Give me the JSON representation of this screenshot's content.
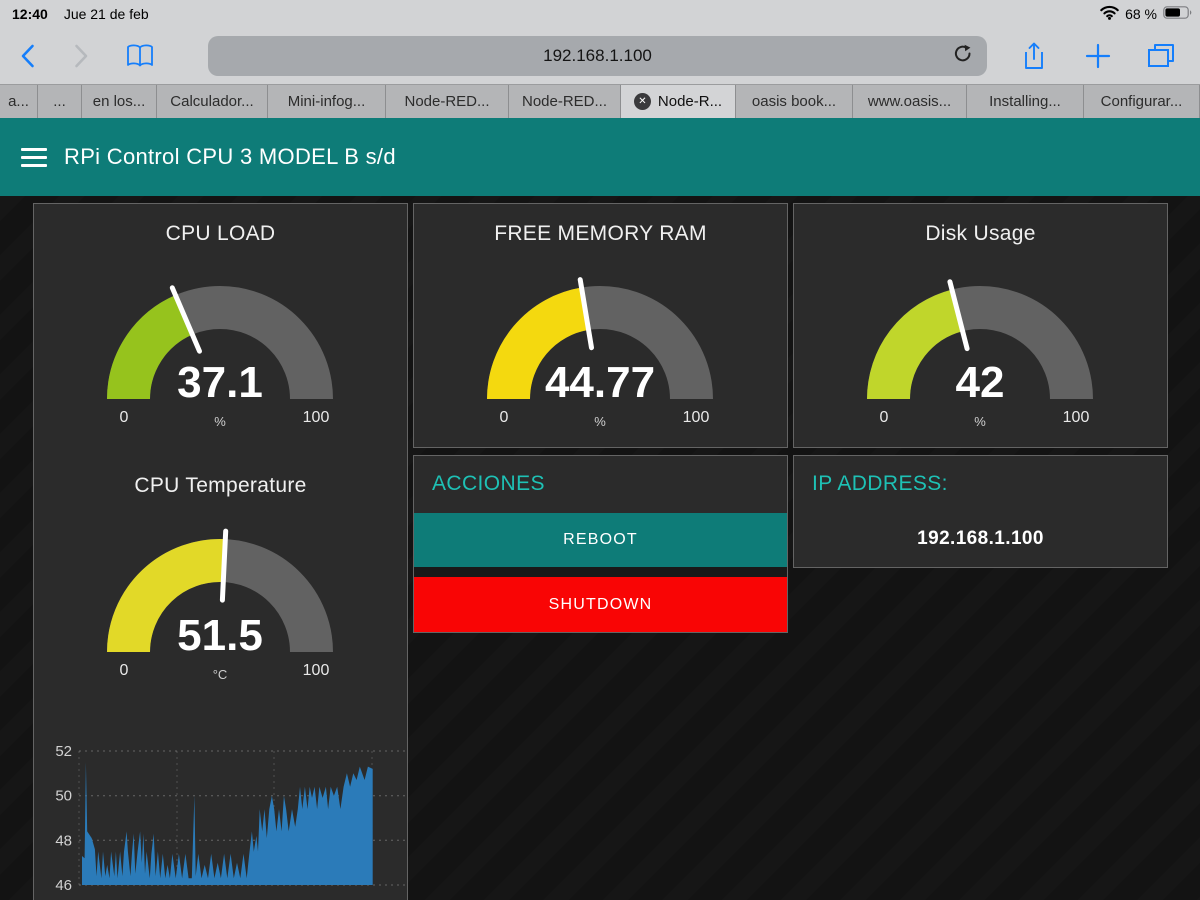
{
  "status_bar": {
    "time": "12:40",
    "date": "Jue 21 de feb",
    "battery": "68 %",
    "battery_level": 0.68
  },
  "toolbar": {
    "url": "192.168.1.100",
    "icons": {
      "back": "chevron-left",
      "forward": "chevron-right",
      "bookmarks": "open-book",
      "reload": "reload-arrow",
      "share": "share-up-arrow",
      "new_tab": "plus",
      "tabs": "tab-overview"
    }
  },
  "tabs": [
    {
      "label": "a...",
      "width": 38,
      "active": false
    },
    {
      "label": "...",
      "width": 44,
      "active": false
    },
    {
      "label": "en los...",
      "width": 75,
      "active": false
    },
    {
      "label": "Calculador...",
      "width": 111,
      "active": false
    },
    {
      "label": "Mini-infog...",
      "width": 118,
      "active": false
    },
    {
      "label": "Node-RED...",
      "width": 123,
      "active": false
    },
    {
      "label": "Node-RED...",
      "width": 112,
      "active": false
    },
    {
      "label": "Node-R...",
      "width": 115,
      "active": true,
      "closable": true
    },
    {
      "label": "oasis book...",
      "width": 117,
      "active": false
    },
    {
      "label": "www.oasis...",
      "width": 114,
      "active": false
    },
    {
      "label": "Installing...",
      "width": 117,
      "active": false
    },
    {
      "label": "Configurar...",
      "width": 116,
      "active": false
    }
  ],
  "header": {
    "title": "RPi Control CPU 3 MODEL B s/d"
  },
  "gauges": {
    "cpu_load": {
      "title": "CPU LOAD",
      "value": "37.1",
      "num": 37.1,
      "min": 0,
      "max": 100,
      "unit": "%",
      "color": "#96c31d"
    },
    "free_memory": {
      "title": "FREE MEMORY RAM",
      "value": "44.77",
      "num": 44.77,
      "min": 0,
      "max": 100,
      "unit": "%",
      "color": "#f4d90f"
    },
    "disk_usage": {
      "title": "Disk Usage",
      "value": "42",
      "num": 42,
      "min": 0,
      "max": 100,
      "unit": "%",
      "color": "#c0d62b"
    },
    "cpu_temp": {
      "title": "CPU Temperature",
      "value": "51.5",
      "num": 51.5,
      "min": 0,
      "max": 100,
      "unit": "°C",
      "color": "#e2d928"
    }
  },
  "actions": {
    "title": "ACCIONES",
    "reboot_label": "REBOOT",
    "shutdown_label": "SHUTDOWN"
  },
  "ip_panel": {
    "title": "IP ADDRESS:",
    "value": "192.168.1.100"
  },
  "colors": {
    "header_teal": "#0e7c78",
    "accent_teal": "#1ec1b5",
    "reboot_teal": "#0e7c78",
    "shutdown_red": "#f90505",
    "gauge_track_gray": "#626262",
    "chart_blue": "#2b7bb9",
    "panel_bg": "#2b2b2b",
    "page_bg": "#131313"
  },
  "chart_data": {
    "type": "area",
    "title": "",
    "xlabel": "",
    "ylabel": "",
    "yticks": [
      46,
      48,
      50,
      52
    ],
    "ylim": [
      46,
      52.6
    ],
    "grid": true,
    "legend": "none",
    "color": "#2b7bb9",
    "series": [
      {
        "name": "CPU Temperature (°C)",
        "points": [
          [
            0.0,
            47.3
          ],
          [
            0.008,
            47.2
          ],
          [
            0.012,
            51.5
          ],
          [
            0.016,
            48.4
          ],
          [
            0.03,
            48.1
          ],
          [
            0.04,
            47.6
          ],
          [
            0.045,
            46.4
          ],
          [
            0.05,
            47.5
          ],
          [
            0.06,
            46.3
          ],
          [
            0.065,
            47.5
          ],
          [
            0.072,
            46.4
          ],
          [
            0.078,
            46.9
          ],
          [
            0.085,
            46.3
          ],
          [
            0.09,
            47.5
          ],
          [
            0.1,
            46.4
          ],
          [
            0.105,
            47.5
          ],
          [
            0.11,
            46.3
          ],
          [
            0.118,
            47.5
          ],
          [
            0.125,
            46.4
          ],
          [
            0.13,
            47.5
          ],
          [
            0.138,
            48.4
          ],
          [
            0.142,
            47.5
          ],
          [
            0.15,
            46.4
          ],
          [
            0.155,
            47.5
          ],
          [
            0.16,
            48.3
          ],
          [
            0.165,
            46.5
          ],
          [
            0.172,
            47.5
          ],
          [
            0.18,
            48.4
          ],
          [
            0.185,
            47.0
          ],
          [
            0.19,
            48.3
          ],
          [
            0.195,
            46.5
          ],
          [
            0.2,
            47.5
          ],
          [
            0.21,
            46.3
          ],
          [
            0.215,
            47.4
          ],
          [
            0.222,
            48.3
          ],
          [
            0.228,
            46.4
          ],
          [
            0.235,
            47.5
          ],
          [
            0.242,
            46.3
          ],
          [
            0.25,
            47.4
          ],
          [
            0.258,
            46.3
          ],
          [
            0.265,
            46.9
          ],
          [
            0.272,
            46.3
          ],
          [
            0.28,
            47.4
          ],
          [
            0.29,
            46.3
          ],
          [
            0.3,
            47.4
          ],
          [
            0.31,
            46.3
          ],
          [
            0.32,
            47.4
          ],
          [
            0.33,
            46.3
          ],
          [
            0.34,
            46.3
          ],
          [
            0.348,
            50.0
          ],
          [
            0.352,
            46.4
          ],
          [
            0.36,
            47.4
          ],
          [
            0.37,
            46.3
          ],
          [
            0.38,
            46.9
          ],
          [
            0.39,
            46.3
          ],
          [
            0.4,
            47.4
          ],
          [
            0.41,
            46.3
          ],
          [
            0.42,
            47.0
          ],
          [
            0.43,
            46.3
          ],
          [
            0.44,
            47.4
          ],
          [
            0.45,
            46.3
          ],
          [
            0.46,
            47.4
          ],
          [
            0.47,
            46.3
          ],
          [
            0.48,
            47.0
          ],
          [
            0.49,
            46.3
          ],
          [
            0.5,
            47.4
          ],
          [
            0.51,
            46.3
          ],
          [
            0.518,
            47.4
          ],
          [
            0.526,
            48.4
          ],
          [
            0.532,
            47.5
          ],
          [
            0.54,
            48.2
          ],
          [
            0.545,
            47.5
          ],
          [
            0.55,
            49.4
          ],
          [
            0.558,
            48.4
          ],
          [
            0.565,
            49.4
          ],
          [
            0.572,
            48.1
          ],
          [
            0.58,
            49.4
          ],
          [
            0.588,
            50.0
          ],
          [
            0.595,
            49.4
          ],
          [
            0.602,
            48.4
          ],
          [
            0.61,
            49.4
          ],
          [
            0.618,
            48.4
          ],
          [
            0.625,
            50.0
          ],
          [
            0.632,
            49.4
          ],
          [
            0.64,
            48.4
          ],
          [
            0.65,
            49.4
          ],
          [
            0.66,
            48.6
          ],
          [
            0.668,
            49.4
          ],
          [
            0.675,
            50.4
          ],
          [
            0.682,
            49.4
          ],
          [
            0.69,
            50.4
          ],
          [
            0.698,
            49.4
          ],
          [
            0.705,
            50.4
          ],
          [
            0.712,
            49.9
          ],
          [
            0.72,
            50.4
          ],
          [
            0.728,
            49.4
          ],
          [
            0.735,
            50.4
          ],
          [
            0.745,
            49.9
          ],
          [
            0.755,
            50.4
          ],
          [
            0.762,
            49.4
          ],
          [
            0.77,
            50.4
          ],
          [
            0.78,
            50.0
          ],
          [
            0.79,
            50.4
          ],
          [
            0.8,
            49.4
          ],
          [
            0.81,
            50.4
          ],
          [
            0.82,
            51.0
          ],
          [
            0.83,
            50.4
          ],
          [
            0.84,
            51.0
          ],
          [
            0.85,
            50.7
          ],
          [
            0.86,
            51.3
          ],
          [
            0.875,
            50.7
          ],
          [
            0.885,
            51.3
          ],
          [
            0.9,
            51.2
          ]
        ]
      }
    ]
  }
}
